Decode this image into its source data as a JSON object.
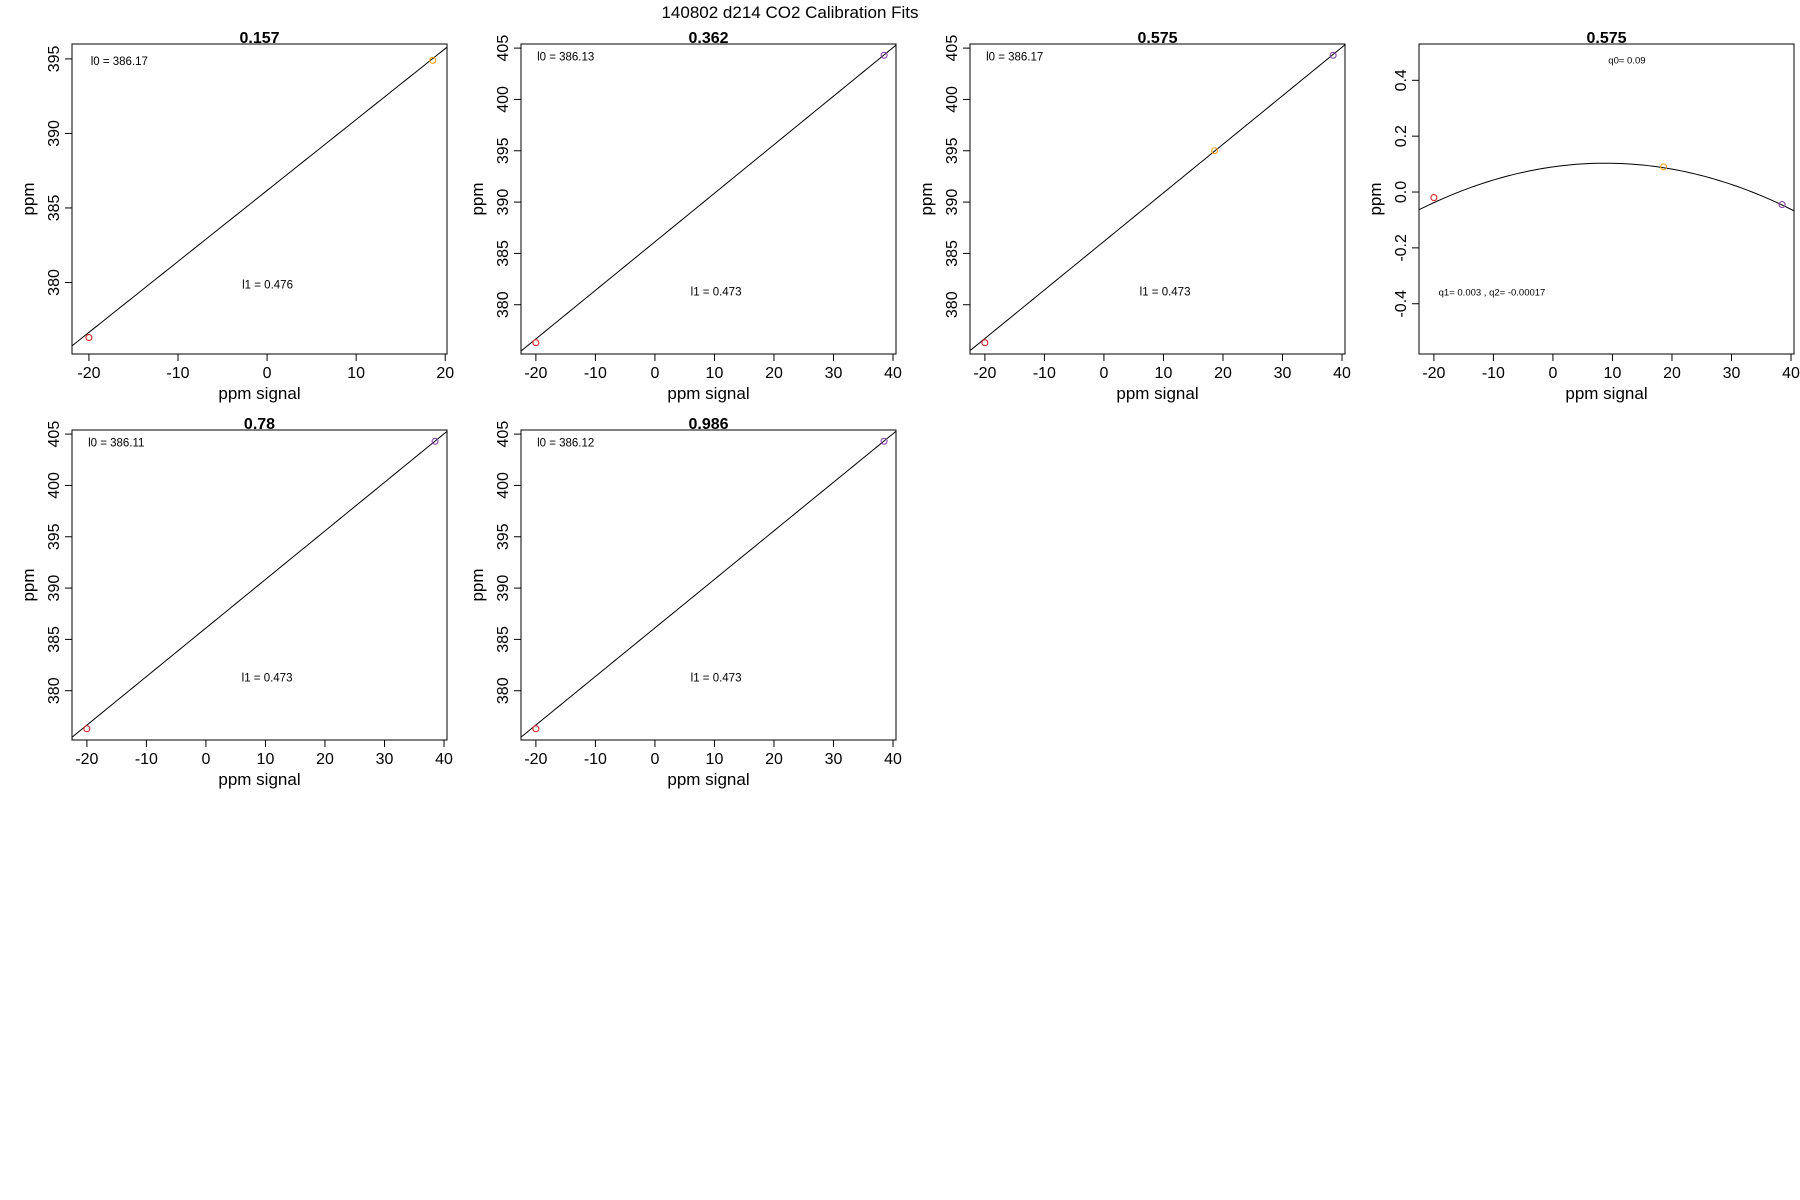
{
  "figure": {
    "title": "140802   d214   CO2 Calibration Fits",
    "colors": {
      "axis": "#000000",
      "fit": "#000000"
    }
  },
  "chart_data": [
    {
      "type": "scatter",
      "title": "0.157",
      "xlabel": "ppm signal",
      "ylabel": "ppm",
      "xlim": [
        -21.9,
        20.2
      ],
      "ylim": [
        375.2,
        396.0
      ],
      "xticks": [
        -20,
        -10,
        0,
        10,
        20
      ],
      "yticks": [
        380,
        385,
        390,
        395
      ],
      "points": [
        {
          "x": -20.0,
          "y": 376.3,
          "color": "#d62728"
        },
        {
          "x": 18.6,
          "y": 394.9,
          "color": "#ff9f1c"
        }
      ],
      "fit": {
        "kind": "linear",
        "l0": 386.17,
        "l1": 0.476
      },
      "annotations": [
        {
          "text": "l0 =  386.17",
          "x": -19.8,
          "y": 394.6,
          "size": "normal"
        },
        {
          "text": "l1 =  0.476",
          "x": -2.8,
          "y": 379.6,
          "size": "normal"
        }
      ]
    },
    {
      "type": "scatter",
      "title": "0.362",
      "xlabel": "ppm signal",
      "ylabel": "ppm",
      "xlim": [
        -22.5,
        40.5
      ],
      "ylim": [
        375.2,
        405.4
      ],
      "xticks": [
        -20,
        -10,
        0,
        10,
        20,
        30,
        40
      ],
      "yticks": [
        380,
        385,
        390,
        395,
        400,
        405
      ],
      "points": [
        {
          "x": -20.0,
          "y": 376.3,
          "color": "#d62728"
        },
        {
          "x": 38.5,
          "y": 404.3,
          "color": "#8e44ad"
        }
      ],
      "fit": {
        "kind": "linear",
        "l0": 386.13,
        "l1": 0.473
      },
      "annotations": [
        {
          "text": "l0 =  386.13",
          "x": -19.8,
          "y": 403.8,
          "size": "normal"
        },
        {
          "text": "l1 =  0.473",
          "x": 6.0,
          "y": 380.9,
          "size": "normal"
        }
      ]
    },
    {
      "type": "scatter",
      "title": "0.575",
      "xlabel": "ppm signal",
      "ylabel": "ppm",
      "xlim": [
        -22.5,
        40.5
      ],
      "ylim": [
        375.2,
        405.4
      ],
      "xticks": [
        -20,
        -10,
        0,
        10,
        20,
        30,
        40
      ],
      "yticks": [
        380,
        385,
        390,
        395,
        400,
        405
      ],
      "points": [
        {
          "x": -20.0,
          "y": 376.3,
          "color": "#d62728"
        },
        {
          "x": 18.6,
          "y": 395.0,
          "color": "#ff9f1c"
        },
        {
          "x": 38.5,
          "y": 404.3,
          "color": "#8e44ad"
        }
      ],
      "fit": {
        "kind": "linear",
        "l0": 386.17,
        "l1": 0.473
      },
      "annotations": [
        {
          "text": "l0 =  386.17",
          "x": -19.8,
          "y": 403.8,
          "size": "normal"
        },
        {
          "text": "l1 =  0.473",
          "x": 6.0,
          "y": 380.9,
          "size": "normal"
        }
      ]
    },
    {
      "type": "scatter",
      "title": "0.575",
      "xlabel": "ppm signal",
      "ylabel": "ppm",
      "xlim": [
        -22.5,
        40.5
      ],
      "ylim": [
        -0.58,
        0.53
      ],
      "xticks": [
        -20,
        -10,
        0,
        10,
        20,
        30,
        40
      ],
      "yticks": [
        -0.4,
        -0.2,
        0.0,
        0.2,
        0.4
      ],
      "points": [
        {
          "x": -20.0,
          "y": -0.02,
          "color": "#d62728"
        },
        {
          "x": 18.6,
          "y": 0.09,
          "color": "#ff9f1c"
        },
        {
          "x": 38.5,
          "y": -0.045,
          "color": "#8e44ad"
        }
      ],
      "fit": {
        "kind": "quadratic",
        "q0": 0.09,
        "q1": 0.003,
        "q2": -0.00017
      },
      "annotations": [
        {
          "text": "q0= 0.09",
          "x": 9.3,
          "y": 0.46,
          "size": "small"
        },
        {
          "text": "q1= 0.003 , q2= -0.00017",
          "x": -19.2,
          "y": -0.37,
          "size": "small"
        }
      ]
    },
    {
      "type": "scatter",
      "title": "0.78",
      "xlabel": "ppm signal",
      "ylabel": "ppm",
      "xlim": [
        -22.5,
        40.5
      ],
      "ylim": [
        375.2,
        405.4
      ],
      "xticks": [
        -20,
        -10,
        0,
        10,
        20,
        30,
        40
      ],
      "yticks": [
        380,
        385,
        390,
        395,
        400,
        405
      ],
      "points": [
        {
          "x": -20.0,
          "y": 376.3,
          "color": "#d62728"
        },
        {
          "x": 38.5,
          "y": 404.3,
          "color": "#8e44ad"
        }
      ],
      "fit": {
        "kind": "linear",
        "l0": 386.11,
        "l1": 0.473
      },
      "annotations": [
        {
          "text": "l0 =  386.11",
          "x": -19.8,
          "y": 403.8,
          "size": "normal"
        },
        {
          "text": "l1 =  0.473",
          "x": 6.0,
          "y": 380.9,
          "size": "normal"
        }
      ]
    },
    {
      "type": "scatter",
      "title": "0.986",
      "xlabel": "ppm signal",
      "ylabel": "ppm",
      "xlim": [
        -22.5,
        40.5
      ],
      "ylim": [
        375.2,
        405.4
      ],
      "xticks": [
        -20,
        -10,
        0,
        10,
        20,
        30,
        40
      ],
      "yticks": [
        380,
        385,
        390,
        395,
        400,
        405
      ],
      "points": [
        {
          "x": -20.0,
          "y": 376.3,
          "color": "#d62728"
        },
        {
          "x": 38.5,
          "y": 404.3,
          "color": "#8e44ad"
        }
      ],
      "fit": {
        "kind": "linear",
        "l0": 386.12,
        "l1": 0.473
      },
      "annotations": [
        {
          "text": "l0 =  386.12",
          "x": -19.8,
          "y": 403.8,
          "size": "normal"
        },
        {
          "text": "l1 =  0.473",
          "x": 6.0,
          "y": 380.9,
          "size": "normal"
        }
      ]
    }
  ]
}
